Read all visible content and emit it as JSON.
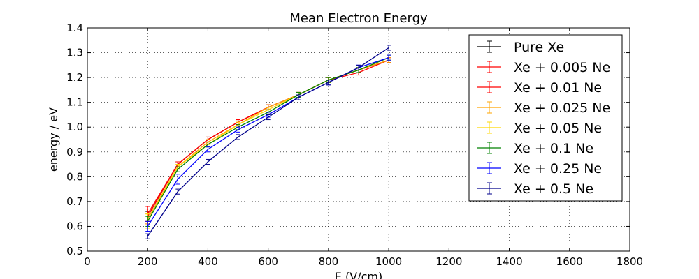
{
  "chart_data": {
    "type": "line",
    "title": "Mean Electron Energy",
    "xlabel": "E (V/cm)",
    "ylabel": "energy / eV",
    "xlim": [
      0,
      1800
    ],
    "ylim": [
      0.5,
      1.4
    ],
    "xticks": [
      0,
      200,
      400,
      600,
      800,
      1000,
      1200,
      1400,
      1600,
      1800
    ],
    "yticks": [
      0.5,
      0.6,
      0.7,
      0.8,
      0.9,
      1.0,
      1.1,
      1.2,
      1.3,
      1.4
    ],
    "xtick_labels": [
      "0",
      "200",
      "400",
      "600",
      "800",
      "1000",
      "1200",
      "1400",
      "1600",
      "1800"
    ],
    "ytick_labels": [
      "0.5",
      "0.6",
      "0.7",
      "0.8",
      "0.9",
      "1.0",
      "1.1",
      "1.2",
      "1.3",
      "1.4"
    ],
    "grid": true,
    "legend_position": "top-right",
    "x": [
      200,
      300,
      400,
      500,
      600,
      700,
      800,
      900,
      1000
    ],
    "series": [
      {
        "name": "Pure Xe",
        "color": "#000000",
        "values": [
          0.64,
          0.85,
          0.95,
          1.02,
          1.08,
          1.13,
          1.19,
          1.23,
          1.27
        ],
        "errors": [
          0.02,
          0.01,
          0.01,
          0.01,
          0.01,
          0.01,
          0.01,
          0.01,
          0.01
        ]
      },
      {
        "name": "Xe + 0.005 Ne",
        "color": "#ff0000",
        "values": [
          0.65,
          0.85,
          0.95,
          1.02,
          1.08,
          1.13,
          1.19,
          1.22,
          1.27
        ],
        "errors": [
          0.03,
          0.01,
          0.01,
          0.01,
          0.01,
          0.01,
          0.01,
          0.01,
          0.01
        ]
      },
      {
        "name": "Xe + 0.01 Ne",
        "color": "#ff0000",
        "values": [
          0.64,
          0.85,
          0.95,
          1.02,
          1.08,
          1.13,
          1.19,
          1.23,
          1.27
        ],
        "errors": [
          0.03,
          0.01,
          0.01,
          0.01,
          0.01,
          0.01,
          0.01,
          0.01,
          0.01
        ]
      },
      {
        "name": "Xe + 0.025 Ne",
        "color": "#ffa500",
        "values": [
          0.63,
          0.84,
          0.94,
          1.01,
          1.08,
          1.13,
          1.19,
          1.23,
          1.27
        ],
        "errors": [
          0.02,
          0.01,
          0.01,
          0.01,
          0.01,
          0.01,
          0.01,
          0.01,
          0.01
        ]
      },
      {
        "name": "Xe + 0.05 Ne",
        "color": "#ffd700",
        "values": [
          0.62,
          0.84,
          0.93,
          1.01,
          1.07,
          1.13,
          1.19,
          1.23,
          1.28
        ],
        "errors": [
          0.03,
          0.01,
          0.01,
          0.01,
          0.01,
          0.01,
          0.01,
          0.01,
          0.01
        ]
      },
      {
        "name": "Xe + 0.1 Ne",
        "color": "#008000",
        "values": [
          0.62,
          0.83,
          0.93,
          1.0,
          1.06,
          1.13,
          1.19,
          1.23,
          1.28
        ],
        "errors": [
          0.02,
          0.01,
          0.01,
          0.01,
          0.01,
          0.01,
          0.01,
          0.01,
          0.01
        ]
      },
      {
        "name": "Xe + 0.25 Ne",
        "color": "#0000ff",
        "values": [
          0.6,
          0.79,
          0.91,
          0.99,
          1.05,
          1.12,
          1.18,
          1.24,
          1.28
        ],
        "errors": [
          0.02,
          0.02,
          0.01,
          0.01,
          0.01,
          0.01,
          0.01,
          0.01,
          0.01
        ]
      },
      {
        "name": "Xe + 0.5 Ne",
        "color": "#00008b",
        "values": [
          0.56,
          0.74,
          0.86,
          0.96,
          1.04,
          1.12,
          1.18,
          1.24,
          1.32
        ],
        "errors": [
          0.01,
          0.01,
          0.01,
          0.01,
          0.01,
          0.01,
          0.01,
          0.01,
          0.01
        ]
      }
    ]
  }
}
